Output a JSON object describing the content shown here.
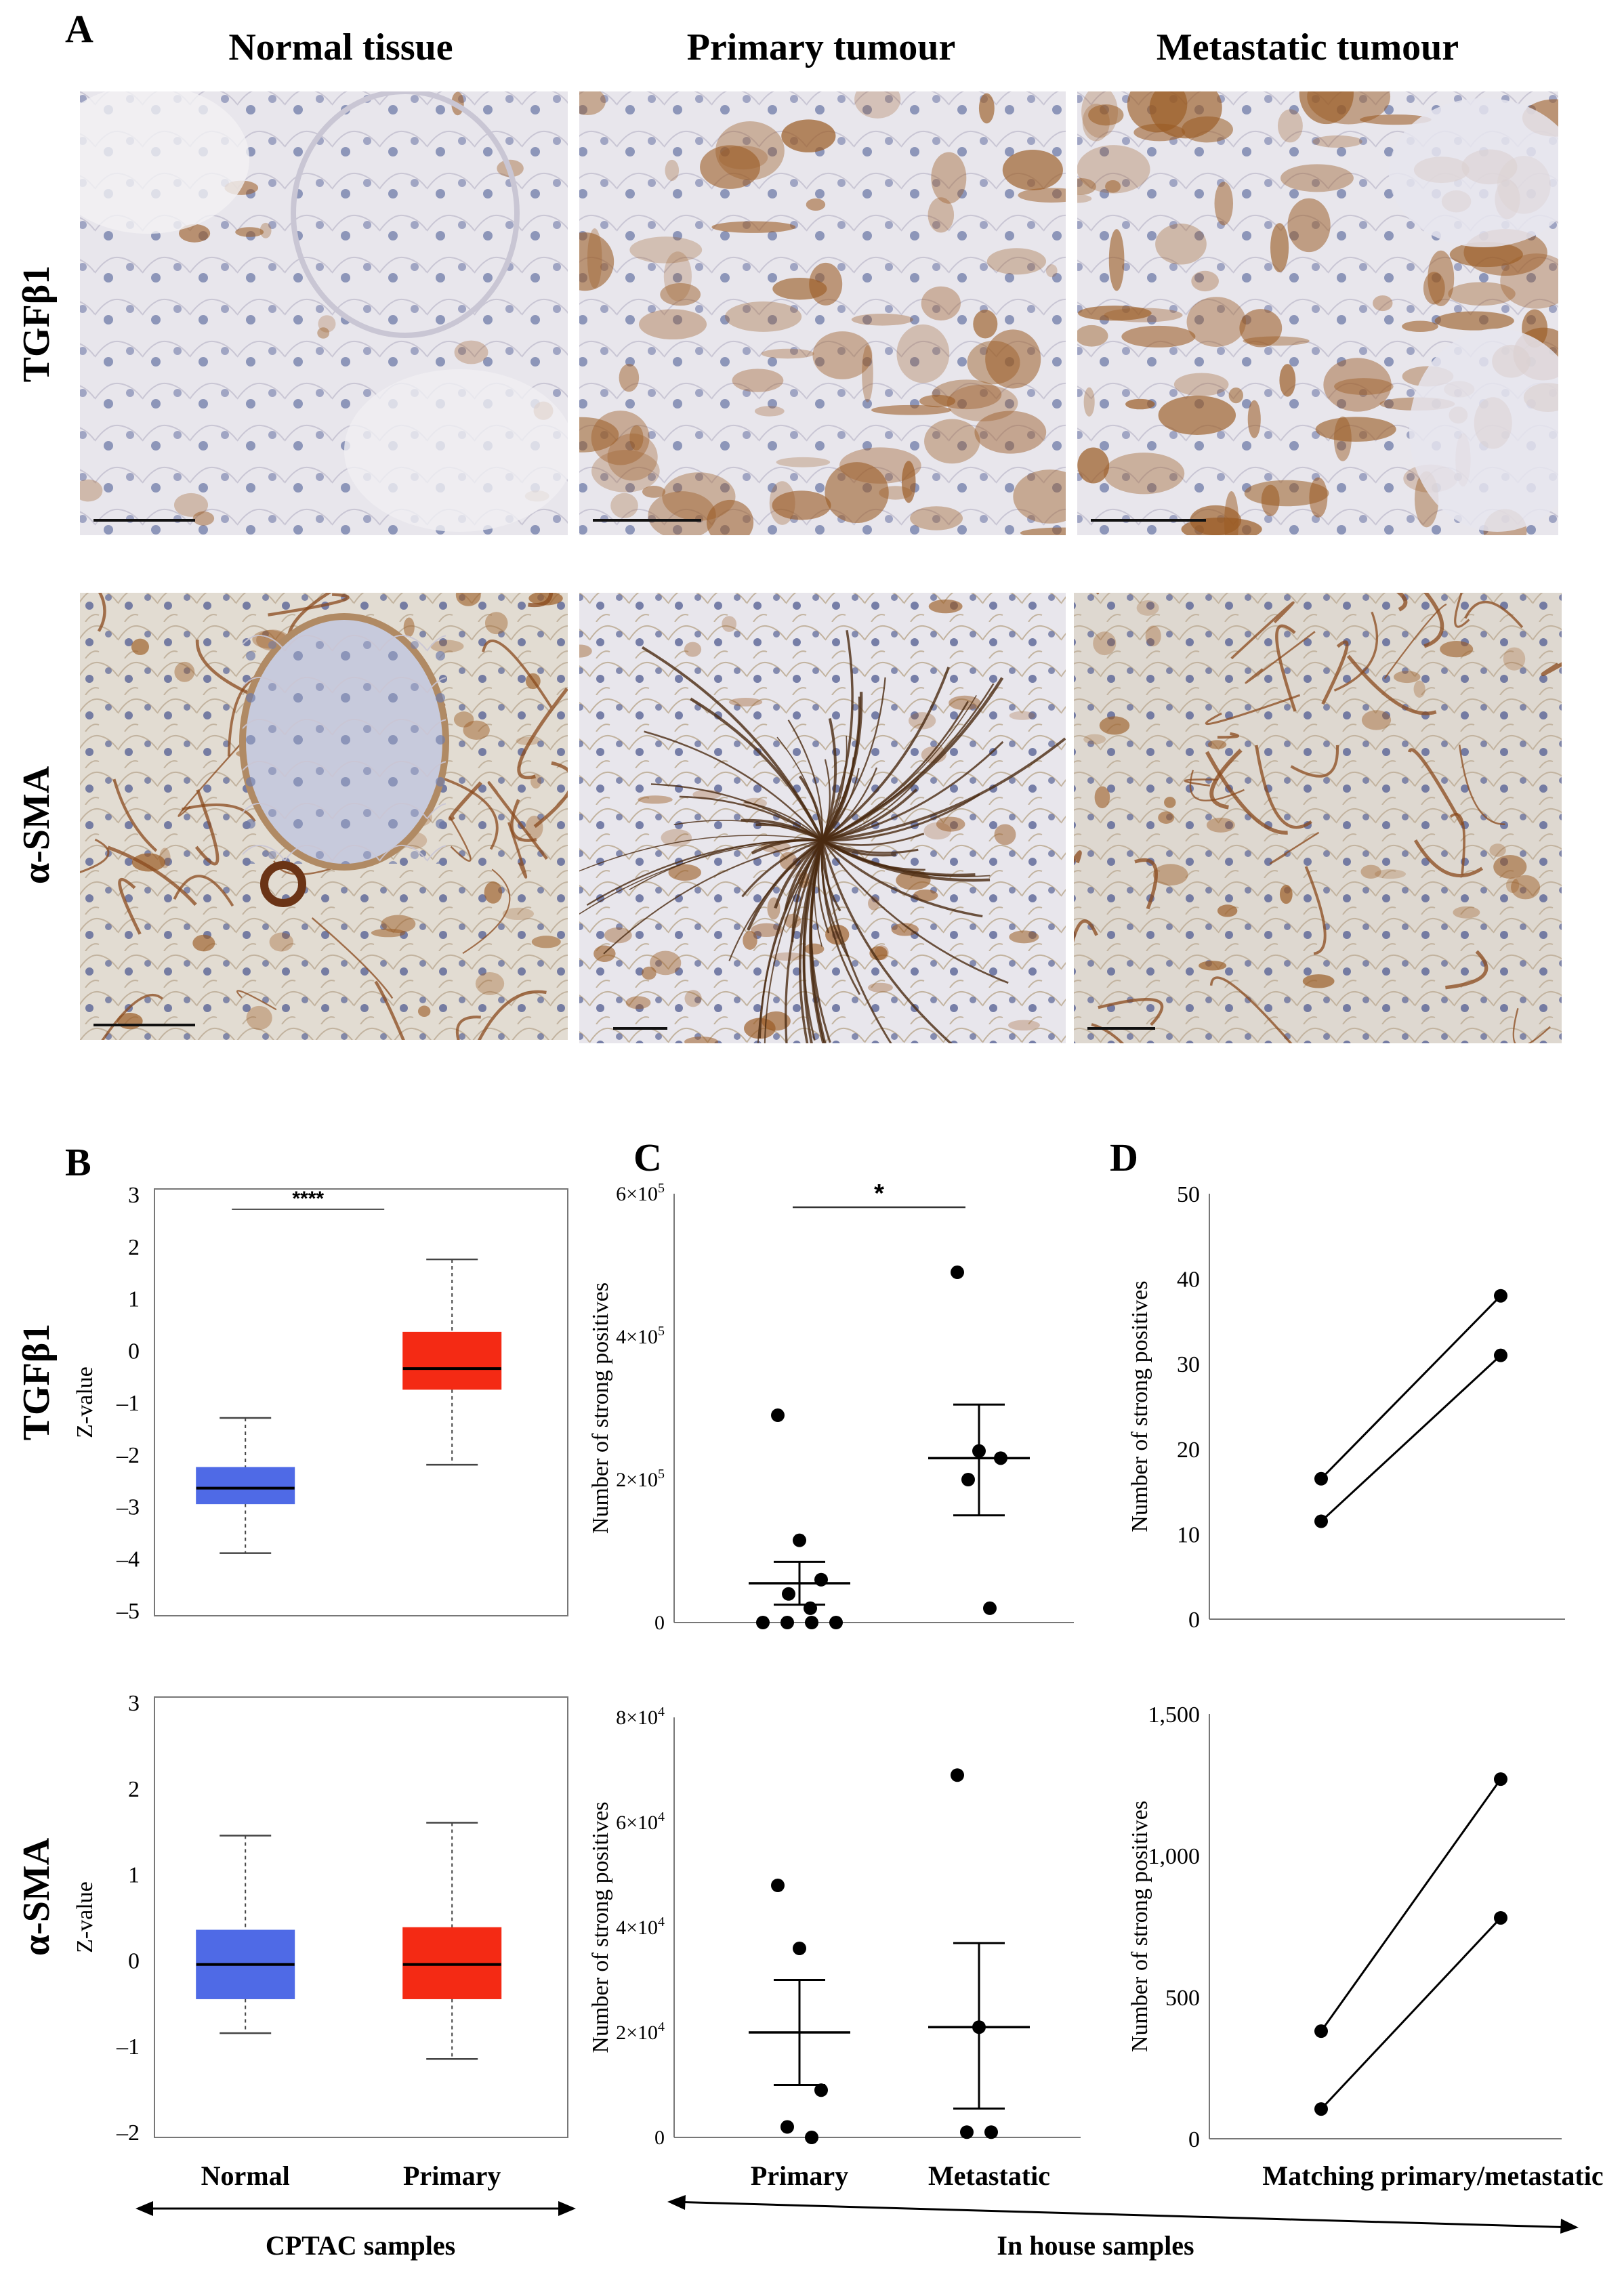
{
  "panel_letters": {
    "a": "A",
    "b": "B",
    "c": "C",
    "d": "D"
  },
  "column_headers": [
    "Normal tissue",
    "Primary tumour",
    "Metastatic tumour"
  ],
  "row_labels": {
    "tgf": "TGFβ1",
    "sma": "α-SMA"
  },
  "histology_colors": {
    "stain_brown": "#9a5a22",
    "nuclei_blue": "#6f7aa8",
    "tissue_bg": "#e8e6ec"
  },
  "group_labels": {
    "cptac": "CPTAC samples",
    "inhouse": "In house samples",
    "matching": "Matching primary/metastatic"
  },
  "chart_data": [
    {
      "id": "B-TGFb1",
      "type": "box",
      "ylabel": "Z-value",
      "ylim": [
        -5,
        3
      ],
      "yticks": [
        "3",
        "2",
        "1",
        "0",
        "-1",
        "-2",
        "-3",
        "-4",
        "-5"
      ],
      "categories": [
        "Normal",
        "Primary"
      ],
      "colors": [
        "#4f6ae6",
        "#f42a14"
      ],
      "boxes": [
        {
          "min": -3.9,
          "q1": -2.95,
          "median": -2.65,
          "q3": -2.25,
          "max": -1.3
        },
        {
          "min": -2.2,
          "q1": -0.75,
          "median": -0.35,
          "q3": 0.35,
          "max": 1.75
        }
      ],
      "significance": "****"
    },
    {
      "id": "B-aSMA",
      "type": "box",
      "ylabel": "Z-value",
      "ylim": [
        -2,
        3
      ],
      "yticks": [
        "3",
        "2",
        "1",
        "0",
        "-1",
        "-2"
      ],
      "categories": [
        "Normal",
        "Primary"
      ],
      "colors": [
        "#4f6ae6",
        "#f42a14"
      ],
      "boxes": [
        {
          "min": -0.85,
          "q1": -0.45,
          "median": -0.05,
          "q3": 0.35,
          "max": 1.45
        },
        {
          "min": -1.15,
          "q1": -0.45,
          "median": -0.05,
          "q3": 0.38,
          "max": 1.6
        }
      ]
    },
    {
      "id": "C-TGFb1",
      "type": "scatter",
      "ylabel": "Number of strong positives",
      "ylim": [
        0,
        600000
      ],
      "yticks": [
        {
          "value": 0,
          "base": "0",
          "exp": ""
        },
        {
          "value": 200000,
          "base": "2×10",
          "exp": "5"
        },
        {
          "value": 400000,
          "base": "4×10",
          "exp": "5"
        },
        {
          "value": 600000,
          "base": "6×10",
          "exp": "5"
        }
      ],
      "categories": [
        "Primary",
        "Metastatic"
      ],
      "points": [
        {
          "group": 0,
          "values": [
            290000,
            115000,
            60000,
            40000,
            20000,
            0,
            0,
            0,
            0
          ]
        },
        {
          "group": 1,
          "values": [
            490000,
            240000,
            230000,
            200000,
            20000
          ]
        }
      ],
      "mean_sem": [
        {
          "mean": 55000,
          "sem_low": 25000,
          "sem_high": 85000
        },
        {
          "mean": 230000,
          "sem_low": 150000,
          "sem_high": 305000
        }
      ],
      "significance": "*"
    },
    {
      "id": "C-aSMA",
      "type": "scatter",
      "ylabel": "Number of strong positives",
      "ylim": [
        0,
        80000
      ],
      "yticks": [
        {
          "value": 0,
          "base": "0",
          "exp": ""
        },
        {
          "value": 20000,
          "base": "2×10",
          "exp": "4"
        },
        {
          "value": 40000,
          "base": "4×10",
          "exp": "4"
        },
        {
          "value": 60000,
          "base": "6×10",
          "exp": "4"
        },
        {
          "value": 80000,
          "base": "8×10",
          "exp": "4"
        }
      ],
      "categories": [
        "Primary",
        "Metastatic"
      ],
      "points": [
        {
          "group": 0,
          "values": [
            48000,
            36000,
            9000,
            2000,
            0
          ]
        },
        {
          "group": 1,
          "values": [
            69000,
            21000,
            1000,
            1000
          ]
        }
      ],
      "mean_sem": [
        {
          "mean": 20000,
          "sem_low": 10000,
          "sem_high": 30000
        },
        {
          "mean": 21000,
          "sem_low": 5500,
          "sem_high": 37000
        }
      ]
    },
    {
      "id": "D-TGFb1",
      "type": "line",
      "ylabel": "Number of strong positives",
      "ylim": [
        0,
        50
      ],
      "yticks": [
        "50",
        "40",
        "30",
        "20",
        "10",
        "0"
      ],
      "pairs": [
        {
          "primary": 16.5,
          "metastatic": 38
        },
        {
          "primary": 11.5,
          "metastatic": 31
        }
      ]
    },
    {
      "id": "D-aSMA",
      "type": "line",
      "ylabel": "Number of strong positives",
      "ylim": [
        0,
        1500
      ],
      "yticks": [
        "1,500",
        "1,000",
        "500",
        "0"
      ],
      "categories": [
        "Matching primary/metastatic"
      ],
      "pairs": [
        {
          "primary": 380,
          "metastatic": 1270
        },
        {
          "primary": 105,
          "metastatic": 780
        }
      ]
    }
  ]
}
